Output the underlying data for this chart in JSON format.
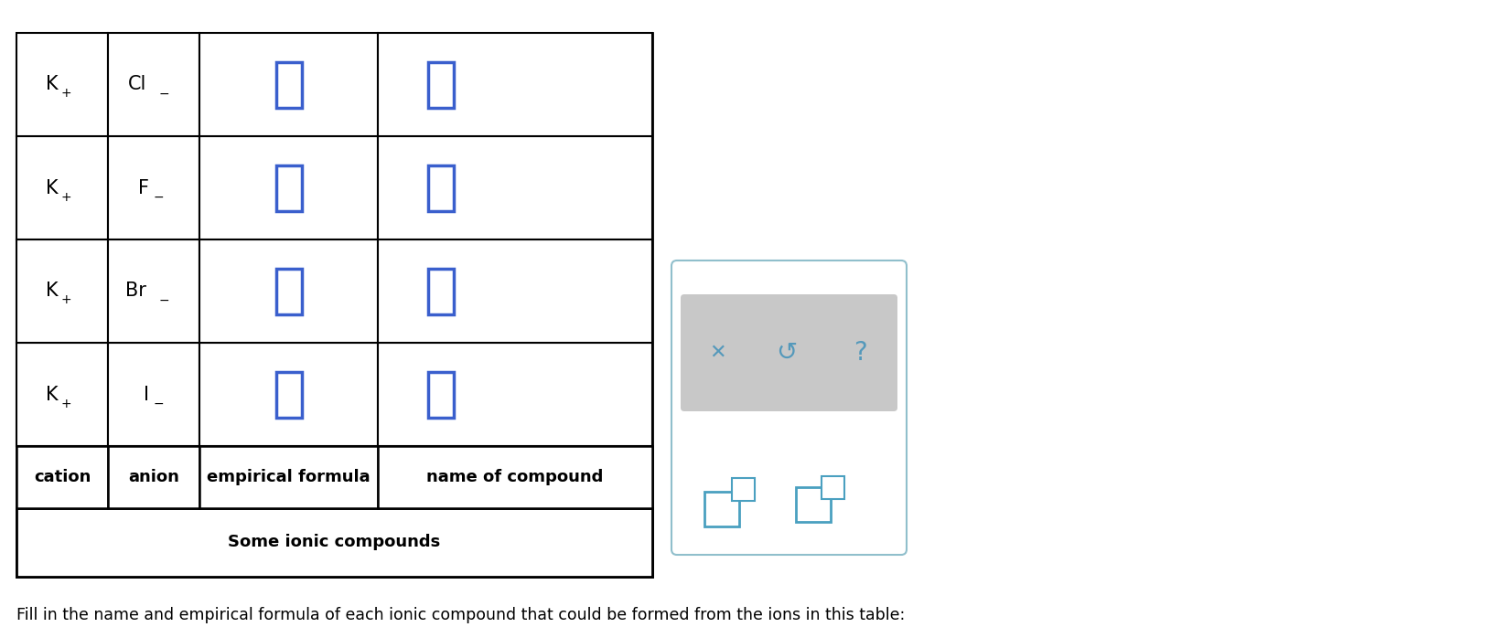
{
  "title_text": "Fill in the name and empirical formula of each ionic compound that could be formed from the ions in this table:",
  "table_title": "Some ionic compounds",
  "headers": [
    "cation",
    "anion",
    "empirical formula",
    "name of compound"
  ],
  "anion_labels": [
    "I",
    "Br",
    "F",
    "Cl"
  ],
  "cation_superscript": "+",
  "anion_superscript": "−",
  "background_color": "#ffffff",
  "table_border_color": "#000000",
  "input_box_color": "#3a5fcd",
  "header_text_color": "#000000",
  "title_font_size": 12.5,
  "table_title_font_size": 13,
  "header_font_size": 13,
  "cell_font_size": 15,
  "superscript_font_size": 10,
  "side_panel_border_color": "#90bfcc",
  "side_panel_bg": "#ffffff",
  "side_panel_bottom_bg": "#c8c8c8",
  "icon_color": "#4aa0c0",
  "bottom_icon_color": "#5599bb"
}
